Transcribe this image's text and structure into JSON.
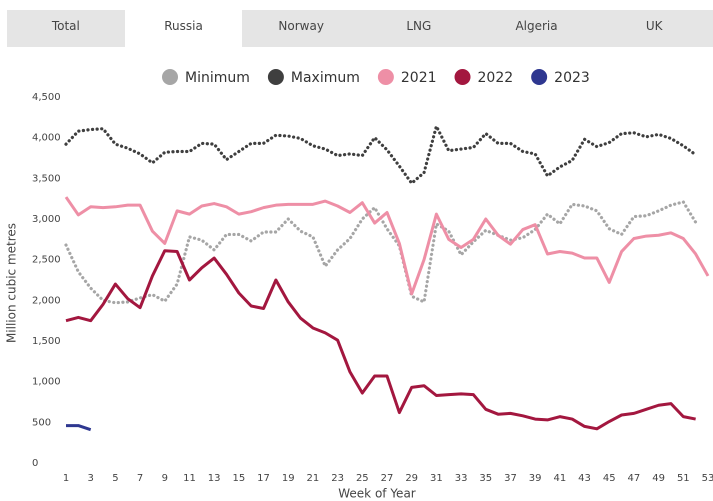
{
  "tabs": [
    {
      "label": "Total",
      "selected": false
    },
    {
      "label": "Russia",
      "selected": true
    },
    {
      "label": "Norway",
      "selected": false
    },
    {
      "label": "LNG",
      "selected": false
    },
    {
      "label": "Algeria",
      "selected": false
    },
    {
      "label": "UK",
      "selected": false
    }
  ],
  "chart_data": {
    "type": "line",
    "xlabel": "Week of Year",
    "ylabel": "Million cubic metres",
    "x": [
      1,
      2,
      3,
      4,
      5,
      6,
      7,
      8,
      9,
      10,
      11,
      12,
      13,
      14,
      15,
      16,
      17,
      18,
      19,
      20,
      21,
      22,
      23,
      24,
      25,
      26,
      27,
      28,
      29,
      30,
      31,
      32,
      33,
      34,
      35,
      36,
      37,
      38,
      39,
      40,
      41,
      42,
      43,
      44,
      45,
      46,
      47,
      48,
      49,
      50,
      51,
      52,
      53
    ],
    "xlim": [
      1,
      53
    ],
    "xticks": [
      1,
      3,
      5,
      7,
      9,
      11,
      13,
      15,
      17,
      19,
      21,
      23,
      25,
      27,
      29,
      31,
      33,
      35,
      37,
      39,
      41,
      43,
      45,
      47,
      49,
      51,
      53
    ],
    "ylim": [
      0,
      4500
    ],
    "yticks": [
      0,
      500,
      {
        "value": 1000,
        "label": "1,000"
      },
      {
        "value": 1500,
        "label": "1,500"
      },
      {
        "value": 2000,
        "label": "2,000"
      },
      {
        "value": 2500,
        "label": "2,500"
      },
      {
        "value": 3000,
        "label": "3,000"
      },
      {
        "value": 3500,
        "label": "3,500"
      },
      {
        "value": 4000,
        "label": "4,000"
      },
      {
        "value": 4500,
        "label": "4,500"
      }
    ],
    "series": [
      {
        "name": "Minimum",
        "color": "#a6a6a6",
        "style": "dotted",
        "values": [
          2680,
          2350,
          2150,
          2000,
          1970,
          1980,
          2030,
          2070,
          1990,
          2200,
          2780,
          2740,
          2620,
          2810,
          2810,
          2730,
          2840,
          2840,
          3000,
          2850,
          2780,
          2420,
          2620,
          2760,
          3000,
          3140,
          2880,
          2670,
          2050,
          1980,
          2940,
          2850,
          2560,
          2720,
          2860,
          2800,
          2740,
          2770,
          2870,
          3060,
          2940,
          3180,
          3160,
          3100,
          2880,
          2810,
          3030,
          3040,
          3100,
          3170,
          3210,
          2960,
          null
        ]
      },
      {
        "name": "Maximum",
        "color": "#3f3f3f",
        "style": "dotted",
        "values": [
          3920,
          4080,
          4100,
          4110,
          3920,
          3870,
          3800,
          3690,
          3820,
          3830,
          3830,
          3930,
          3920,
          3730,
          3830,
          3930,
          3930,
          4030,
          4020,
          3990,
          3900,
          3860,
          3780,
          3800,
          3780,
          4000,
          3850,
          3650,
          3440,
          3570,
          4140,
          3840,
          3860,
          3880,
          4050,
          3930,
          3930,
          3830,
          3800,
          3530,
          3640,
          3720,
          3980,
          3890,
          3940,
          4050,
          4060,
          4010,
          4040,
          3990,
          3900,
          3790,
          null
        ]
      },
      {
        "name": "2021",
        "color": "#ee8fa6",
        "style": "solid",
        "values": [
          3270,
          3050,
          3150,
          3140,
          3150,
          3170,
          3170,
          2850,
          2700,
          3100,
          3060,
          3160,
          3190,
          3150,
          3060,
          3090,
          3140,
          3170,
          3180,
          3180,
          3180,
          3220,
          3160,
          3080,
          3200,
          2950,
          3080,
          2700,
          2080,
          2500,
          3060,
          2750,
          2650,
          2750,
          3000,
          2800,
          2690,
          2870,
          2930,
          2570,
          2600,
          2580,
          2520,
          2520,
          2220,
          2600,
          2760,
          2790,
          2800,
          2830,
          2760,
          2570,
          2300
        ]
      },
      {
        "name": "2022",
        "color": "#a3173f",
        "style": "solid",
        "values": [
          1750,
          1790,
          1750,
          1950,
          2200,
          2020,
          1910,
          2300,
          2610,
          2600,
          2250,
          2400,
          2520,
          2320,
          2090,
          1930,
          1900,
          2250,
          1980,
          1780,
          1660,
          1600,
          1510,
          1120,
          860,
          1070,
          1070,
          620,
          930,
          950,
          830,
          840,
          850,
          840,
          660,
          600,
          610,
          580,
          540,
          530,
          570,
          540,
          450,
          420,
          510,
          590,
          610,
          660,
          710,
          730,
          570,
          540,
          null
        ]
      },
      {
        "name": "2023",
        "color": "#2e3790",
        "style": "solid",
        "values": [
          460,
          460,
          410,
          null,
          null,
          null,
          null,
          null,
          null,
          null,
          null,
          null,
          null,
          null,
          null,
          null,
          null,
          null,
          null,
          null,
          null,
          null,
          null,
          null,
          null,
          null,
          null,
          null,
          null,
          null,
          null,
          null,
          null,
          null,
          null,
          null,
          null,
          null,
          null,
          null,
          null,
          null,
          null,
          null,
          null,
          null,
          null,
          null,
          null,
          null,
          null,
          null,
          null
        ]
      }
    ]
  }
}
